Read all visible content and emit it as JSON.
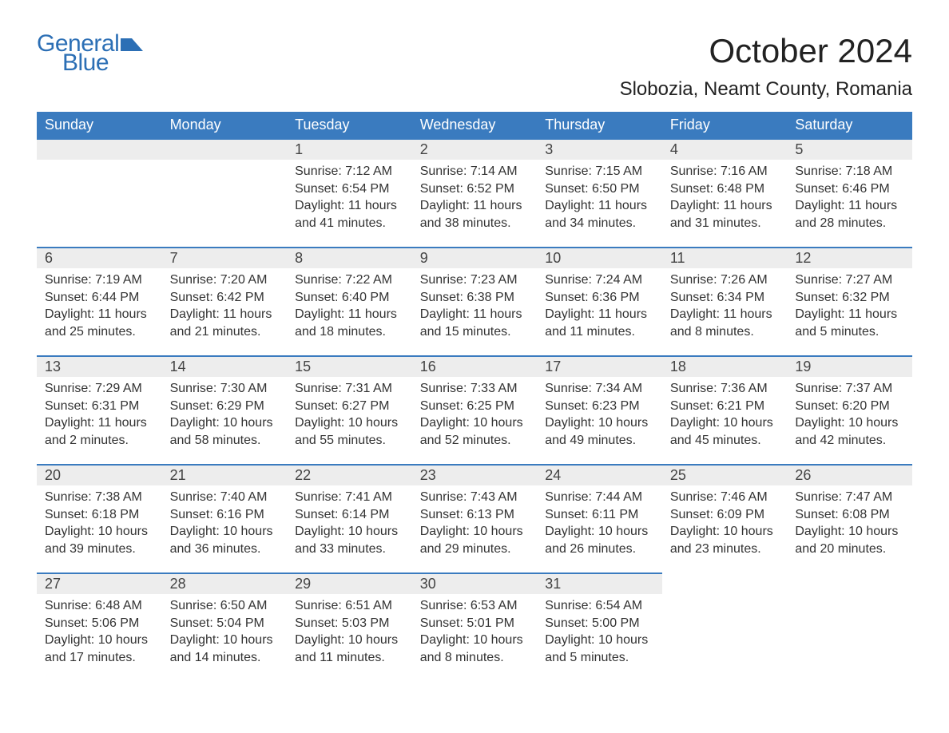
{
  "logo": {
    "word1": "General",
    "word2": "Blue",
    "icon_color": "#2c6fb5",
    "text_color": "#2c6fb5"
  },
  "title": "October 2024",
  "subtitle": "Slobozia, Neamt County, Romania",
  "colors": {
    "header_bg": "#3a7bbf",
    "header_text": "#ffffff",
    "daynum_bg": "#ededed",
    "daynum_border": "#3a7bbf",
    "body_text": "#333333",
    "page_bg": "#ffffff"
  },
  "fonts": {
    "title_size": 42,
    "subtitle_size": 24,
    "header_size": 18,
    "daynum_size": 18,
    "cell_size": 16
  },
  "day_headers": [
    "Sunday",
    "Monday",
    "Tuesday",
    "Wednesday",
    "Thursday",
    "Friday",
    "Saturday"
  ],
  "weeks": [
    [
      null,
      null,
      {
        "n": "1",
        "sr": "7:12 AM",
        "ss": "6:54 PM",
        "dl": "11 hours and 41 minutes."
      },
      {
        "n": "2",
        "sr": "7:14 AM",
        "ss": "6:52 PM",
        "dl": "11 hours and 38 minutes."
      },
      {
        "n": "3",
        "sr": "7:15 AM",
        "ss": "6:50 PM",
        "dl": "11 hours and 34 minutes."
      },
      {
        "n": "4",
        "sr": "7:16 AM",
        "ss": "6:48 PM",
        "dl": "11 hours and 31 minutes."
      },
      {
        "n": "5",
        "sr": "7:18 AM",
        "ss": "6:46 PM",
        "dl": "11 hours and 28 minutes."
      }
    ],
    [
      {
        "n": "6",
        "sr": "7:19 AM",
        "ss": "6:44 PM",
        "dl": "11 hours and 25 minutes."
      },
      {
        "n": "7",
        "sr": "7:20 AM",
        "ss": "6:42 PM",
        "dl": "11 hours and 21 minutes."
      },
      {
        "n": "8",
        "sr": "7:22 AM",
        "ss": "6:40 PM",
        "dl": "11 hours and 18 minutes."
      },
      {
        "n": "9",
        "sr": "7:23 AM",
        "ss": "6:38 PM",
        "dl": "11 hours and 15 minutes."
      },
      {
        "n": "10",
        "sr": "7:24 AM",
        "ss": "6:36 PM",
        "dl": "11 hours and 11 minutes."
      },
      {
        "n": "11",
        "sr": "7:26 AM",
        "ss": "6:34 PM",
        "dl": "11 hours and 8 minutes."
      },
      {
        "n": "12",
        "sr": "7:27 AM",
        "ss": "6:32 PM",
        "dl": "11 hours and 5 minutes."
      }
    ],
    [
      {
        "n": "13",
        "sr": "7:29 AM",
        "ss": "6:31 PM",
        "dl": "11 hours and 2 minutes."
      },
      {
        "n": "14",
        "sr": "7:30 AM",
        "ss": "6:29 PM",
        "dl": "10 hours and 58 minutes."
      },
      {
        "n": "15",
        "sr": "7:31 AM",
        "ss": "6:27 PM",
        "dl": "10 hours and 55 minutes."
      },
      {
        "n": "16",
        "sr": "7:33 AM",
        "ss": "6:25 PM",
        "dl": "10 hours and 52 minutes."
      },
      {
        "n": "17",
        "sr": "7:34 AM",
        "ss": "6:23 PM",
        "dl": "10 hours and 49 minutes."
      },
      {
        "n": "18",
        "sr": "7:36 AM",
        "ss": "6:21 PM",
        "dl": "10 hours and 45 minutes."
      },
      {
        "n": "19",
        "sr": "7:37 AM",
        "ss": "6:20 PM",
        "dl": "10 hours and 42 minutes."
      }
    ],
    [
      {
        "n": "20",
        "sr": "7:38 AM",
        "ss": "6:18 PM",
        "dl": "10 hours and 39 minutes."
      },
      {
        "n": "21",
        "sr": "7:40 AM",
        "ss": "6:16 PM",
        "dl": "10 hours and 36 minutes."
      },
      {
        "n": "22",
        "sr": "7:41 AM",
        "ss": "6:14 PM",
        "dl": "10 hours and 33 minutes."
      },
      {
        "n": "23",
        "sr": "7:43 AM",
        "ss": "6:13 PM",
        "dl": "10 hours and 29 minutes."
      },
      {
        "n": "24",
        "sr": "7:44 AM",
        "ss": "6:11 PM",
        "dl": "10 hours and 26 minutes."
      },
      {
        "n": "25",
        "sr": "7:46 AM",
        "ss": "6:09 PM",
        "dl": "10 hours and 23 minutes."
      },
      {
        "n": "26",
        "sr": "7:47 AM",
        "ss": "6:08 PM",
        "dl": "10 hours and 20 minutes."
      }
    ],
    [
      {
        "n": "27",
        "sr": "6:48 AM",
        "ss": "5:06 PM",
        "dl": "10 hours and 17 minutes."
      },
      {
        "n": "28",
        "sr": "6:50 AM",
        "ss": "5:04 PM",
        "dl": "10 hours and 14 minutes."
      },
      {
        "n": "29",
        "sr": "6:51 AM",
        "ss": "5:03 PM",
        "dl": "10 hours and 11 minutes."
      },
      {
        "n": "30",
        "sr": "6:53 AM",
        "ss": "5:01 PM",
        "dl": "10 hours and 8 minutes."
      },
      {
        "n": "31",
        "sr": "6:54 AM",
        "ss": "5:00 PM",
        "dl": "10 hours and 5 minutes."
      },
      null,
      null
    ]
  ],
  "labels": {
    "sunrise": "Sunrise: ",
    "sunset": "Sunset: ",
    "daylight": "Daylight: "
  }
}
